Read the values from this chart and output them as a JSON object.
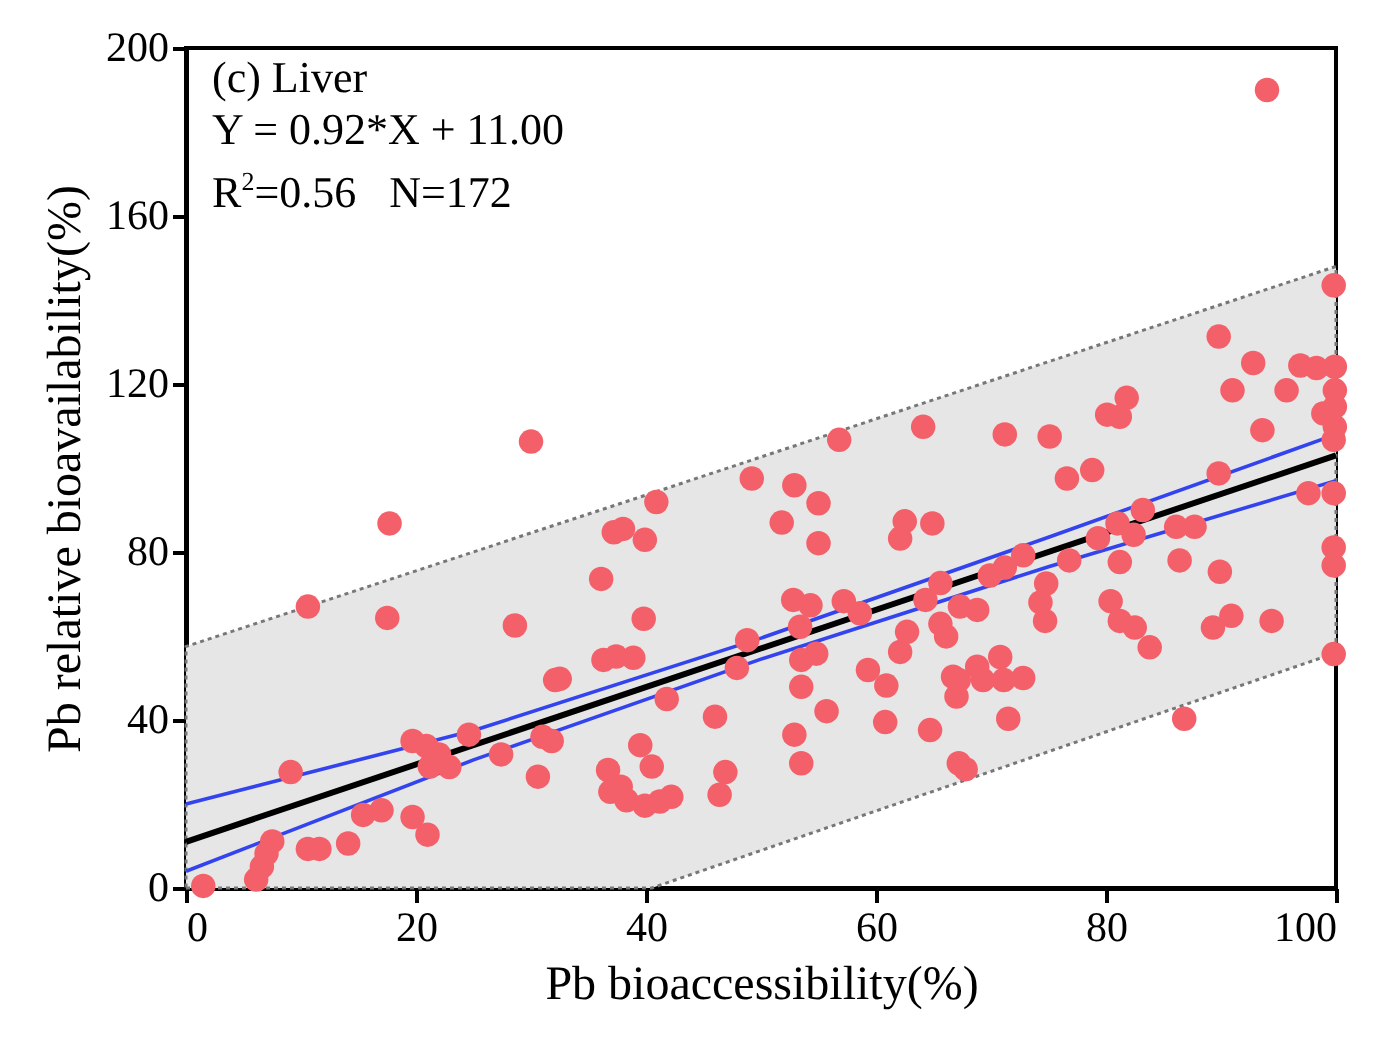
{
  "chart_data": {
    "type": "scatter",
    "xlabel": "Pb bioaccessibility(%)",
    "ylabel": "Pb relative bioavailability(%)",
    "xlim": [
      0,
      100
    ],
    "xticks": [
      0,
      20,
      40,
      60,
      80,
      100
    ],
    "ylim": [
      0,
      200
    ],
    "yticks": [
      0,
      40,
      80,
      120,
      160,
      200
    ],
    "annotations": [
      "(c) Liver",
      "Y = 0.92*X + 11.00",
      "R$^{2}$=0.56   N=172"
    ],
    "series": [
      {
        "marker": "circle",
        "color": "#f4606a",
        "x": [
          30.0,
          17.7,
          10.6,
          17.5,
          28.6,
          32.1,
          24.6,
          19.7,
          20.9,
          22.0,
          21.2,
          22.9,
          27.4,
          31.0,
          31.8,
          30.6,
          9.1,
          15.4,
          17.0,
          19.7,
          21.0,
          14.1,
          10.6,
          11.6,
          7.5,
          7.0,
          6.6,
          6.1,
          1.5,
          64.1,
          56.8,
          49.2,
          52.9,
          55.0,
          40.9,
          37.2,
          38.0,
          39.9,
          51.8,
          55.0,
          62.5,
          64.9,
          62.1,
          36.1,
          39.8,
          52.8,
          54.3,
          57.2,
          58.6,
          53.4,
          64.3,
          65.6,
          62.7,
          65.6,
          48.8,
          62.1,
          54.8,
          53.5,
          36.3,
          37.4,
          38.9,
          32.5,
          47.9,
          59.3,
          60.9,
          67.2,
          41.8,
          53.5,
          46.0,
          55.7,
          60.8,
          64.7,
          52.9,
          39.5,
          40.5,
          53.5,
          36.7,
          37.8,
          36.9,
          46.9,
          46.4,
          39.9,
          41.2,
          42.2,
          38.3,
          67.2,
          99.8,
          89.8,
          92.8,
          96.9,
          98.3,
          99.9,
          91.0,
          95.7,
          99.9,
          99.9,
          98.9,
          99.9,
          99.8,
          93.6,
          81.8,
          80.1,
          81.2,
          71.2,
          75.1,
          76.6,
          78.8,
          89.8,
          97.6,
          99.8,
          83.2,
          81.0,
          82.4,
          79.3,
          86.1,
          87.7,
          81.2,
          76.8,
          72.8,
          71.2,
          69.9,
          86.4,
          89.9,
          99.8,
          99.8,
          74.8,
          74.3,
          74.7,
          80.4,
          81.2,
          82.5,
          83.8,
          89.3,
          90.9,
          94.4,
          99.8,
          86.8,
          67.8,
          71.5,
          68.8,
          67.3,
          66.1,
          66.7,
          67.0,
          68.8,
          70.8,
          71.1,
          72.8,
          69.3,
          94.0
        ],
        "values": [
          106.3,
          86.8,
          67.0,
          64.3,
          62.5,
          49.5,
          36.5,
          35.0,
          33.8,
          31.8,
          28.9,
          28.8,
          31.8,
          36.0,
          35.0,
          26.5,
          27.6,
          17.4,
          18.5,
          16.9,
          12.7,
          10.6,
          9.3,
          9.3,
          11.1,
          8.2,
          5.1,
          2.0,
          0.5,
          109.8,
          106.7,
          97.5,
          95.9,
          91.6,
          91.9,
          84.7,
          85.5,
          82.9,
          87.0,
          82.1,
          87.3,
          86.8,
          83.2,
          73.6,
          64.1,
          68.6,
          67.3,
          68.3,
          65.4,
          62.2,
          68.6,
          72.6,
          61.0,
          62.9,
          59.0,
          56.2,
          55.8,
          54.3,
          54.3,
          55.1,
          54.8,
          49.8,
          52.4,
          51.9,
          48.2,
          49.5,
          45.0,
          47.9,
          40.8,
          42.1,
          39.5,
          37.6,
          36.5,
          34.0,
          28.9,
          29.7,
          28.1,
          24.1,
          22.9,
          27.6,
          22.2,
          19.6,
          20.6,
          21.7,
          20.9,
          29.7,
          143.5,
          131.3,
          125.0,
          124.4,
          123.8,
          124.1,
          118.5,
          118.5,
          118.5,
          114.6,
          113.0,
          109.8,
          106.7,
          109.0,
          116.7,
          112.7,
          112.2,
          108.0,
          107.5,
          97.5,
          99.5,
          98.7,
          94.0,
          94.0,
          90.0,
          86.8,
          84.1,
          83.3,
          86.0,
          86.0,
          77.6,
          78.0,
          79.2,
          76.3,
          74.4,
          78.0,
          75.3,
          81.1,
          76.8,
          72.5,
          68.0,
          63.6,
          68.3,
          63.6,
          62.0,
          57.3,
          62.0,
          64.8,
          63.6,
          55.7,
          40.3,
          28.3,
          40.3,
          66.2,
          67.0,
          59.9,
          50.3,
          45.6,
          52.7,
          55.0,
          49.5,
          50.0,
          49.5,
          190.0
        ]
      },
      {
        "type": "line",
        "color": "#000000",
        "x": [
          0,
          40.5,
          100
        ],
        "values": [
          11,
          48.3,
          103
        ],
        "lower": [
          0,
          0,
          56
        ],
        "upper": [
          57.5,
          94,
          148
        ]
      },
      {
        "type": "line",
        "color": "#3344ee",
        "x": [
          0,
          25,
          50,
          75,
          100
        ],
        "values": [
          20,
          37.5,
          59.5,
          83.5,
          108
        ]
      },
      {
        "type": "line",
        "color": "#3344ee",
        "x": [
          0,
          25,
          50,
          75,
          100
        ],
        "values": [
          4,
          30.5,
          54.5,
          76.5,
          97
        ]
      }
    ]
  }
}
